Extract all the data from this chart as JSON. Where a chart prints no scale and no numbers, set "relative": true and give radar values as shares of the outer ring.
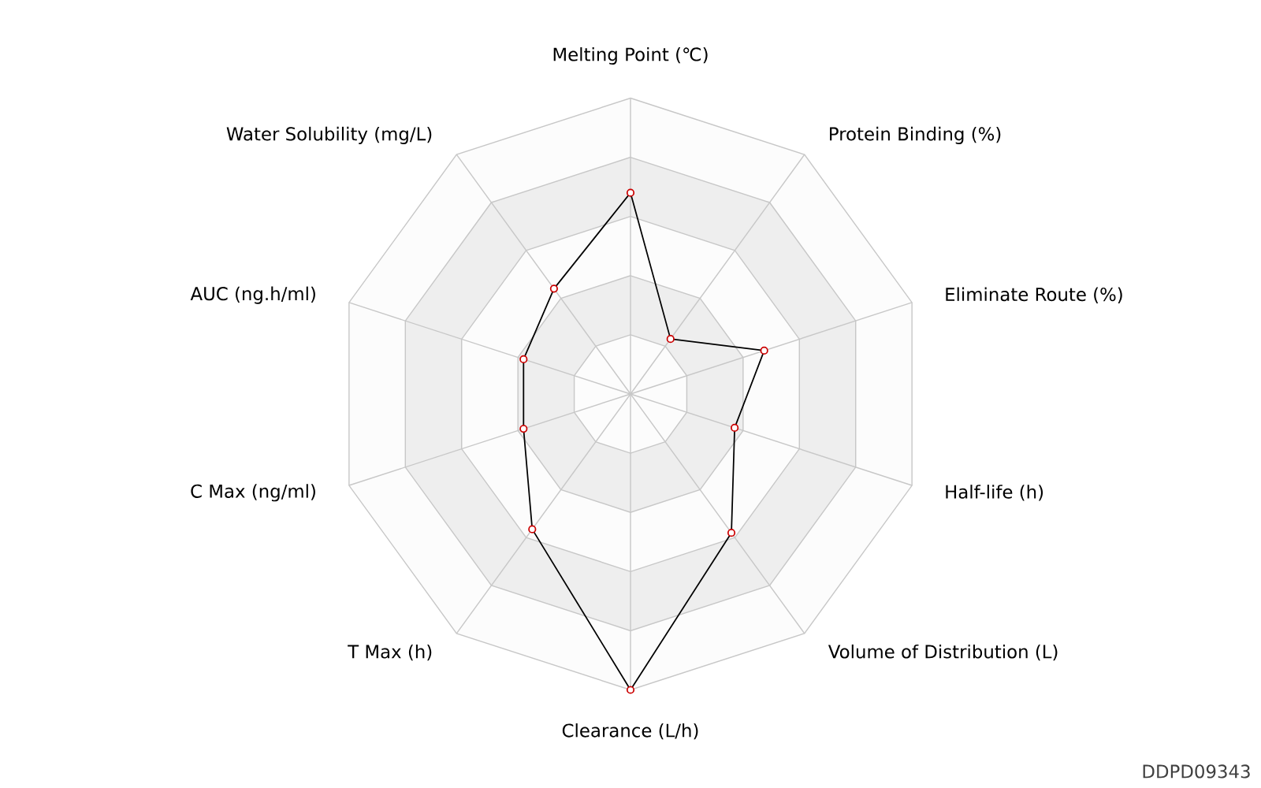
{
  "chart_data": {
    "type": "radar",
    "relative": true,
    "marker": "circle",
    "categories": [
      "Melting Point (℃)",
      "Protein Binding (%)",
      "Eliminate Route (%)",
      "Half-life (h)",
      "Volume of Distribution (L)",
      "Clearance (L/h)",
      "T Max (h)",
      "C Max (ng/ml)",
      "AUC (ng.h/ml)",
      "Water Solubility (mg/L)"
    ],
    "series": [
      {
        "color": "#000000",
        "values": [
          0.68,
          0.23,
          0.475,
          0.37,
          0.58,
          1.0,
          0.565,
          0.38,
          0.38,
          0.44
        ]
      }
    ],
    "annotations": [
      "DDPD09343"
    ]
  }
}
